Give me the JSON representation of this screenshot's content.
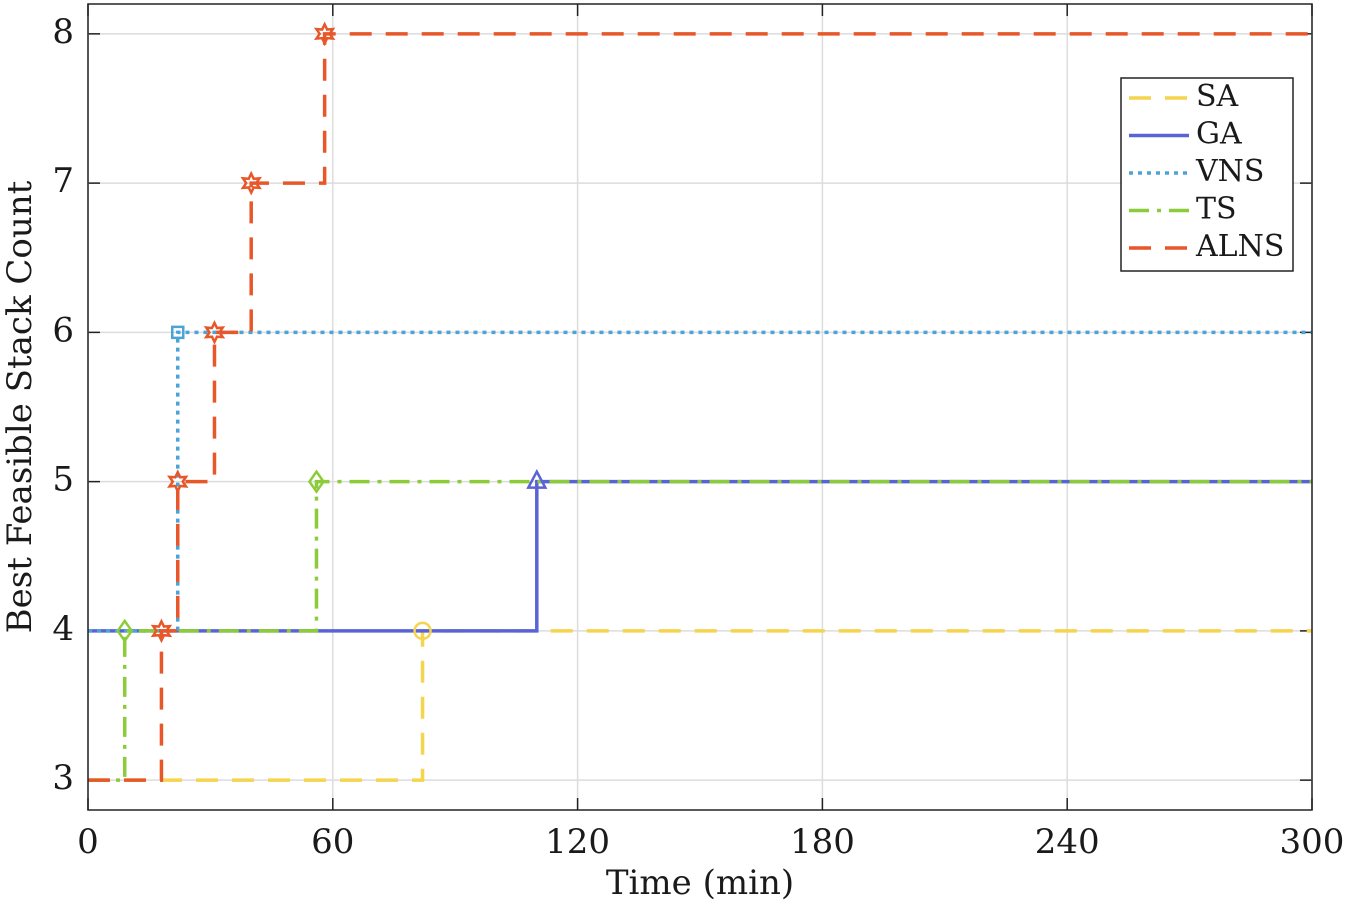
{
  "chart_data": {
    "type": "step-line",
    "xlabel": "Time (min)",
    "ylabel": "Best Feasible Stack Count",
    "xlim": [
      0,
      300
    ],
    "xticks": [
      0,
      60,
      120,
      180,
      240,
      300
    ],
    "ylim": [
      2.8,
      8.2
    ],
    "yticks": [
      3,
      4,
      5,
      6,
      7,
      8
    ],
    "grid": true,
    "legend": "upper right",
    "series": [
      {
        "name": "SA",
        "color": "#f5d44e",
        "linestyle": "dashed",
        "marker": "circle",
        "x": [
          0,
          82,
          300
        ],
        "values": [
          3,
          4,
          4
        ]
      },
      {
        "name": "GA",
        "color": "#5a63d6",
        "linestyle": "solid",
        "marker": "triangle",
        "x": [
          0,
          110,
          300
        ],
        "values": [
          4,
          5,
          5
        ]
      },
      {
        "name": "VNS",
        "color": "#4ba3d6",
        "linestyle": "dotted",
        "marker": "square",
        "x": [
          0,
          22,
          300
        ],
        "values": [
          4,
          6,
          6
        ]
      },
      {
        "name": "TS",
        "color": "#8ccc3a",
        "linestyle": "dashdot",
        "marker": "diamond",
        "x": [
          0,
          9,
          56,
          300
        ],
        "values": [
          3,
          4,
          5,
          5
        ]
      },
      {
        "name": "ALNS",
        "color": "#e8572a",
        "linestyle": "dashed",
        "marker": "hexagram",
        "x": [
          0,
          18,
          22,
          31,
          40,
          58,
          300
        ],
        "values": [
          3,
          4,
          5,
          6,
          7,
          8,
          8
        ]
      }
    ]
  }
}
